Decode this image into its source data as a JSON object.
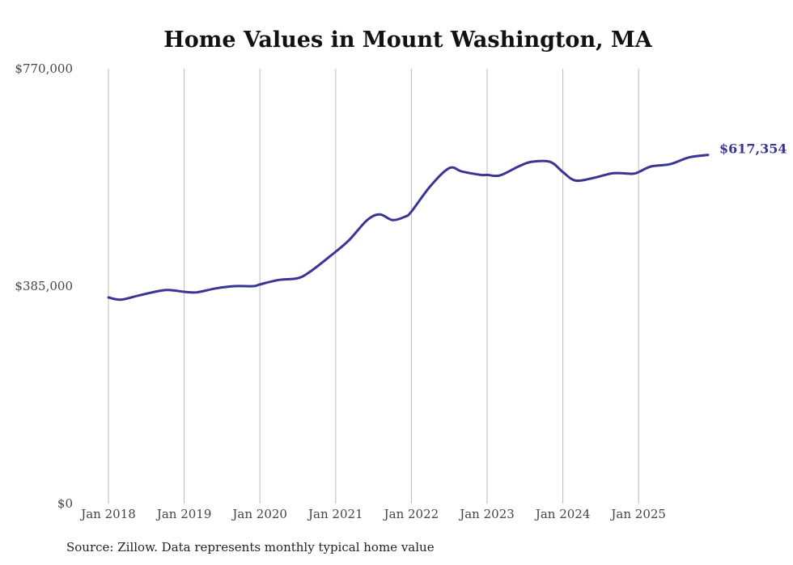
{
  "chart_data": {
    "type": "line",
    "title": "Home Values in Mount Washington, MA",
    "xlabel": "",
    "ylabel": "",
    "ylim": [
      0,
      770000
    ],
    "y_ticks": [
      0,
      385000,
      770000
    ],
    "y_tick_labels": [
      "$0",
      "$385,000",
      "$770,000"
    ],
    "x_tick_labels": [
      "Jan 2018",
      "Jan 2019",
      "Jan 2020",
      "Jan 2021",
      "Jan 2022",
      "Jan 2023",
      "Jan 2024",
      "Jan 2025"
    ],
    "x_tick_years": [
      2018,
      2019,
      2020,
      2021,
      2022,
      2023,
      2024,
      2025
    ],
    "grid": "vertical",
    "line_color": "#3a3594",
    "series": [
      {
        "name": "Typical home value",
        "points": [
          [
            "2018-01",
            365000
          ],
          [
            "2018-03",
            361000
          ],
          [
            "2018-06",
            369000
          ],
          [
            "2018-10",
            378000
          ],
          [
            "2019-01",
            375000
          ],
          [
            "2019-03",
            374000
          ],
          [
            "2019-06",
            381000
          ],
          [
            "2019-09",
            385000
          ],
          [
            "2019-12",
            385000
          ],
          [
            "2020-01",
            388000
          ],
          [
            "2020-04",
            396000
          ],
          [
            "2020-07",
            399000
          ],
          [
            "2020-09",
            411000
          ],
          [
            "2020-12",
            437000
          ],
          [
            "2021-03",
            465000
          ],
          [
            "2021-06",
            502000
          ],
          [
            "2021-08",
            512000
          ],
          [
            "2021-10",
            502000
          ],
          [
            "2021-12",
            508000
          ],
          [
            "2022-01",
            517000
          ],
          [
            "2022-04",
            562000
          ],
          [
            "2022-07",
            594000
          ],
          [
            "2022-09",
            588000
          ],
          [
            "2022-12",
            582000
          ],
          [
            "2023-01",
            582000
          ],
          [
            "2023-03",
            581000
          ],
          [
            "2023-06",
            597000
          ],
          [
            "2023-08",
            605000
          ],
          [
            "2023-11",
            605000
          ],
          [
            "2024-01",
            587000
          ],
          [
            "2024-03",
            572000
          ],
          [
            "2024-06",
            577000
          ],
          [
            "2024-09",
            585000
          ],
          [
            "2024-12",
            584000
          ],
          [
            "2025-01",
            587000
          ],
          [
            "2025-03",
            597000
          ],
          [
            "2025-06",
            601000
          ],
          [
            "2025-09",
            613000
          ],
          [
            "2025-12",
            617354
          ]
        ]
      }
    ],
    "end_label": "$617,354"
  },
  "source": "Source: Zillow. Data represents monthly typical home value"
}
